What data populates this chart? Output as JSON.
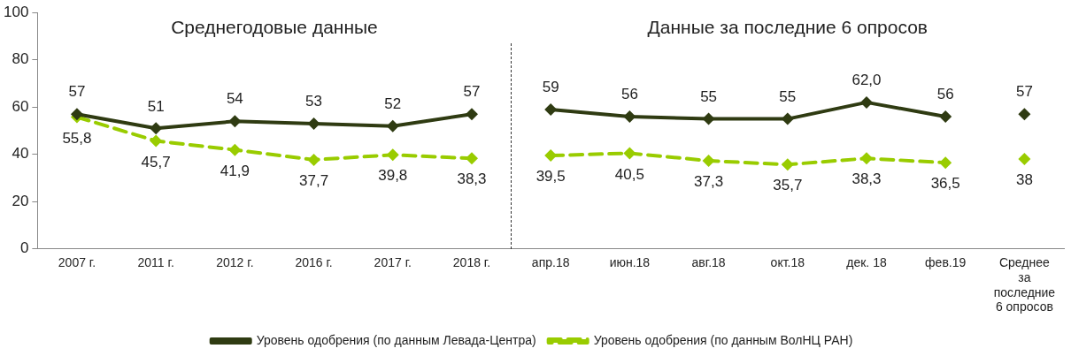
{
  "chart_data": {
    "type": "line",
    "categories": [
      "2007 г.",
      "2011 г.",
      "2012 г.",
      "2016 г.",
      "2017 г.",
      "2018 г.",
      "апр.18",
      "июн.18",
      "авг.18",
      "окт.18",
      "дек. 18",
      "фев.19",
      "Среднее за последние 6 опросов"
    ],
    "series": [
      {
        "name": "Уровень одобрения (по данным Левада-Центра)",
        "color": "#2f3b12",
        "line_style": "solid",
        "x": [
          "2007 г.",
          "2011 г.",
          "2012 г.",
          "2016 г.",
          "2017 г.",
          "2018 г."
        ],
        "values": [
          57,
          51,
          54,
          53,
          52,
          57
        ],
        "value_labels": [
          "57",
          "51",
          "54",
          "53",
          "52",
          "57"
        ]
      },
      {
        "color": "#2f3b12",
        "line_style": "solid",
        "x": [
          "апр.18",
          "июн.18",
          "авг.18",
          "окт.18",
          "дек. 18",
          "фев.19"
        ],
        "values": [
          59,
          56,
          55,
          55,
          62.0,
          56
        ],
        "value_labels": [
          "59",
          "56",
          "55",
          "55",
          "62,0",
          "56"
        ]
      },
      {
        "color": "#2f3b12",
        "line_style": "solid",
        "x": [
          "Среднее за последние 6 опросов"
        ],
        "values": [
          57
        ],
        "value_labels": [
          "57"
        ]
      },
      {
        "name": "Уровень одобрения (по данным ВолНЦ РАН)",
        "color": "#99cc00",
        "line_style": "dashed",
        "x": [
          "2007 г.",
          "2011 г.",
          "2012 г.",
          "2016 г.",
          "2017 г.",
          "2018 г."
        ],
        "values": [
          55.8,
          45.7,
          41.9,
          37.7,
          39.8,
          38.3
        ],
        "value_labels": [
          "55,8",
          "45,7",
          "41,9",
          "37,7",
          "39,8",
          "38,3"
        ]
      },
      {
        "color": "#99cc00",
        "line_style": "dashed",
        "x": [
          "апр.18",
          "июн.18",
          "авг.18",
          "окт.18",
          "дек. 18",
          "фев.19"
        ],
        "values": [
          39.5,
          40.5,
          37.3,
          35.7,
          38.3,
          36.5
        ],
        "value_labels": [
          "39,5",
          "40,5",
          "37,3",
          "35,7",
          "38,3",
          "36,5"
        ]
      },
      {
        "color": "#99cc00",
        "line_style": "dashed",
        "x": [
          "Среднее за последние 6 опросов"
        ],
        "values": [
          38
        ],
        "value_labels": [
          "38"
        ]
      }
    ],
    "annotations": [
      "Среднегодовые данные",
      "Данные за последние 6 опросов"
    ],
    "ylim": [
      0,
      100
    ],
    "yticks": [
      0,
      20,
      40,
      60,
      80,
      100
    ],
    "grid": false,
    "legend": "bottom",
    "marker": "diamond"
  }
}
